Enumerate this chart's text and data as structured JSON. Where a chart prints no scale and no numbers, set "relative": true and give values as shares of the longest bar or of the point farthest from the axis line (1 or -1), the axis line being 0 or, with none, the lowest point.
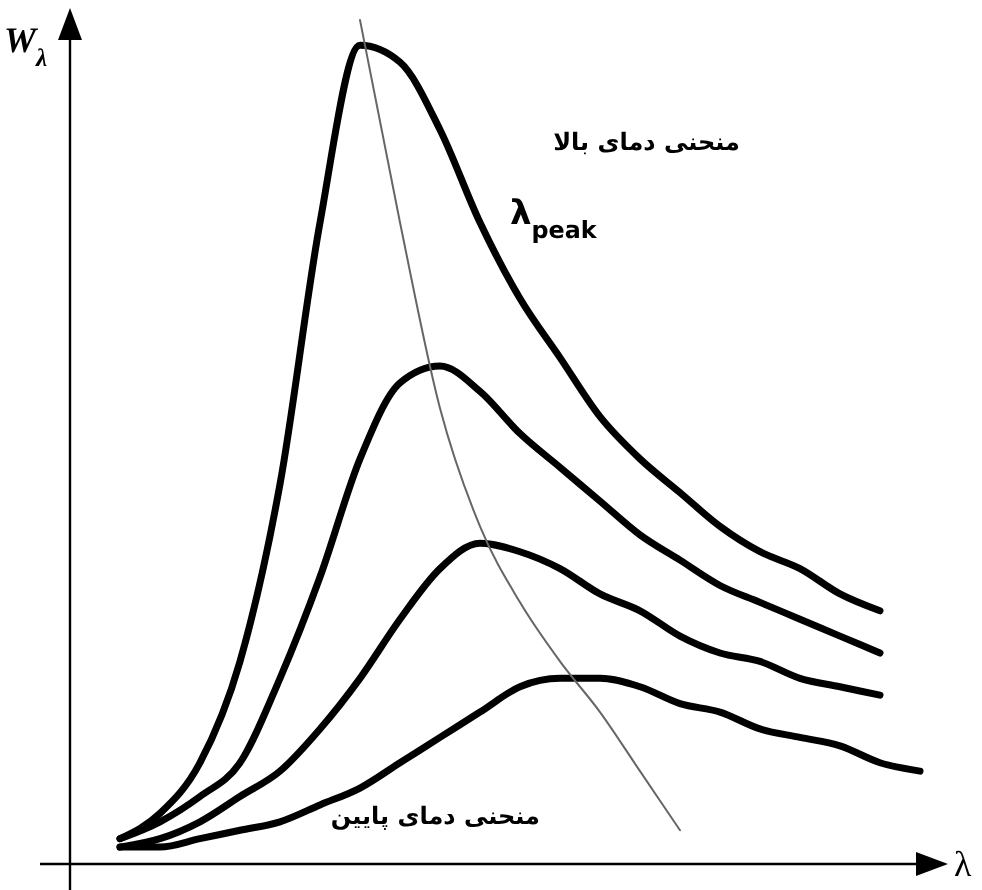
{
  "chart_data": {
    "type": "line",
    "relative": true,
    "xlabel": "λ",
    "ylabel": "W$_{λ}$",
    "categories": [
      null,
      null,
      null,
      null,
      null,
      null,
      null,
      null,
      null,
      null,
      null,
      null,
      null,
      null,
      null,
      null,
      null,
      null,
      null,
      null,
      null,
      null
    ],
    "series": [
      {
        "color": "#000000",
        "values": [
          null,
          0.03,
          0.06,
          0.12,
          0.24,
          0.45,
          0.76,
          0.97,
          0.95,
          0.87,
          0.76,
          0.67,
          0.6,
          0.53,
          0.48,
          0.44,
          0.4,
          0.37,
          0.35,
          0.32,
          0.3,
          null
        ]
      },
      {
        "color": "#000000",
        "values": [
          null,
          0.03,
          0.05,
          0.08,
          0.12,
          0.22,
          0.34,
          0.48,
          0.57,
          0.59,
          0.56,
          0.51,
          0.47,
          0.43,
          0.39,
          0.36,
          0.33,
          0.31,
          0.29,
          0.27,
          0.25,
          null
        ]
      },
      {
        "color": "#000000",
        "values": [
          null,
          0.02,
          0.03,
          0.05,
          0.08,
          0.11,
          0.16,
          0.22,
          0.29,
          0.35,
          0.38,
          0.37,
          0.35,
          0.32,
          0.3,
          0.27,
          0.25,
          0.24,
          0.22,
          0.21,
          0.2,
          null
        ]
      },
      {
        "color": "#000000",
        "values": [
          null,
          0.02,
          0.02,
          0.03,
          0.04,
          0.05,
          0.07,
          0.09,
          0.12,
          0.15,
          0.18,
          0.21,
          0.22,
          0.22,
          0.21,
          0.19,
          0.18,
          0.16,
          0.15,
          0.14,
          0.12,
          0.11
        ]
      },
      {
        "color": "#666666",
        "values": [
          null,
          null,
          null,
          null,
          null,
          null,
          null,
          1.0,
          0.76,
          0.54,
          0.4,
          0.31,
          0.24,
          0.18,
          0.11,
          0.04,
          null,
          null,
          null,
          null,
          null,
          null
        ]
      }
    ],
    "annotations": [
      "منحنی دمای بالا",
      "λ$_{peak}$",
      "منحنی دمای پایین"
    ],
    "marker": "none",
    "line_style": "solid"
  }
}
